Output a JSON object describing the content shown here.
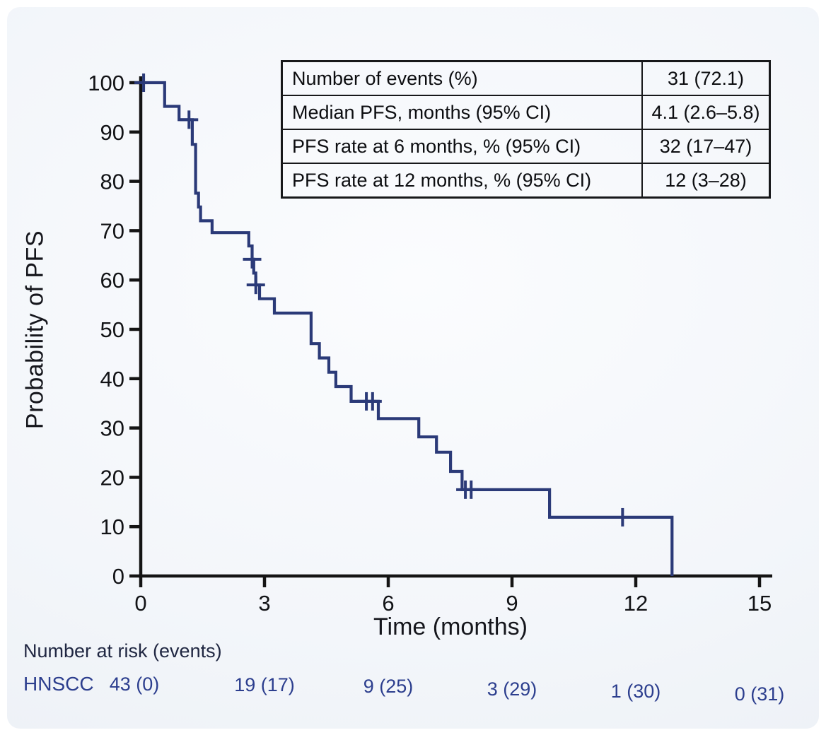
{
  "colors": {
    "background": "#ffffff",
    "panel_bg": "#f3f6fa",
    "curve": "#2b3a78",
    "axis": "#141414",
    "tick_label": "#121316",
    "table_text": "#0c0d10",
    "risk_text": "#2c3e8e",
    "risk_title_text": "#202742"
  },
  "chart_data": {
    "type": "line",
    "subtype": "kaplan-meier-step",
    "title": "",
    "xlabel": "Time (months)",
    "ylabel": "Probability of PFS",
    "xlim": [
      0,
      15
    ],
    "ylim": [
      0,
      100
    ],
    "xticks": [
      "0",
      "3",
      "6",
      "9",
      "12",
      "15"
    ],
    "yticks": [
      "0",
      "10",
      "20",
      "30",
      "40",
      "50",
      "60",
      "70",
      "80",
      "90",
      "100"
    ],
    "grid": false,
    "legend_position": "none",
    "series": [
      {
        "name": "HNSCC",
        "steps": [
          [
            0,
            100
          ],
          [
            0.58,
            100
          ],
          [
            0.58,
            95.2
          ],
          [
            0.93,
            95.2
          ],
          [
            0.93,
            92.5
          ],
          [
            1.25,
            92.5
          ],
          [
            1.25,
            87.5
          ],
          [
            1.33,
            87.5
          ],
          [
            1.33,
            77.6
          ],
          [
            1.4,
            77.6
          ],
          [
            1.4,
            74.8
          ],
          [
            1.45,
            74.8
          ],
          [
            1.45,
            72.0
          ],
          [
            1.73,
            72.0
          ],
          [
            1.73,
            69.6
          ],
          [
            2.62,
            69.6
          ],
          [
            2.62,
            66.9
          ],
          [
            2.7,
            66.9
          ],
          [
            2.7,
            64.2
          ],
          [
            2.74,
            64.2
          ],
          [
            2.74,
            61.4
          ],
          [
            2.79,
            61.4
          ],
          [
            2.79,
            59.0
          ],
          [
            2.88,
            59.0
          ],
          [
            2.88,
            56.2
          ],
          [
            3.24,
            56.2
          ],
          [
            3.24,
            53.3
          ],
          [
            4.13,
            53.3
          ],
          [
            4.13,
            47.1
          ],
          [
            4.33,
            47.1
          ],
          [
            4.33,
            44.2
          ],
          [
            4.56,
            44.2
          ],
          [
            4.56,
            41.3
          ],
          [
            4.73,
            41.3
          ],
          [
            4.73,
            38.4
          ],
          [
            5.1,
            38.4
          ],
          [
            5.1,
            35.4
          ],
          [
            5.76,
            35.4
          ],
          [
            5.76,
            31.9
          ],
          [
            6.74,
            31.9
          ],
          [
            6.74,
            28.2
          ],
          [
            7.17,
            28.2
          ],
          [
            7.17,
            25.1
          ],
          [
            7.51,
            25.1
          ],
          [
            7.51,
            21.2
          ],
          [
            7.79,
            21.2
          ],
          [
            7.79,
            17.5
          ],
          [
            9.91,
            17.5
          ],
          [
            9.91,
            11.9
          ],
          [
            12.88,
            11.9
          ],
          [
            12.88,
            0
          ]
        ],
        "censor_marks": [
          [
            0.07,
            100
          ],
          [
            1.17,
            92.5
          ],
          [
            2.7,
            64.2
          ],
          [
            2.79,
            59.0
          ],
          [
            5.47,
            35.4
          ],
          [
            5.62,
            35.4
          ],
          [
            7.87,
            17.5
          ],
          [
            8.01,
            17.5
          ],
          [
            11.68,
            11.9
          ]
        ]
      }
    ]
  },
  "stats_table": {
    "rows": [
      {
        "label": "Number of events (%)",
        "value": "31 (72.1)"
      },
      {
        "label": "Median PFS, months (95% CI)",
        "value": "4.1 (2.6–5.8)"
      },
      {
        "label": "PFS rate at 6 months, % (95% CI)",
        "value": "32 (17–47)"
      },
      {
        "label": "PFS rate at 12 months, % (95% CI)",
        "value": "12 (3–28)"
      }
    ]
  },
  "risk_table": {
    "title": "Number at risk (events)",
    "group": "HNSCC",
    "times": [
      0,
      3,
      6,
      9,
      12,
      15
    ],
    "values": [
      "43 (0)",
      "19 (17)",
      "9 (25)",
      "3 (29)",
      "1 (30)",
      "0 (31)"
    ]
  }
}
